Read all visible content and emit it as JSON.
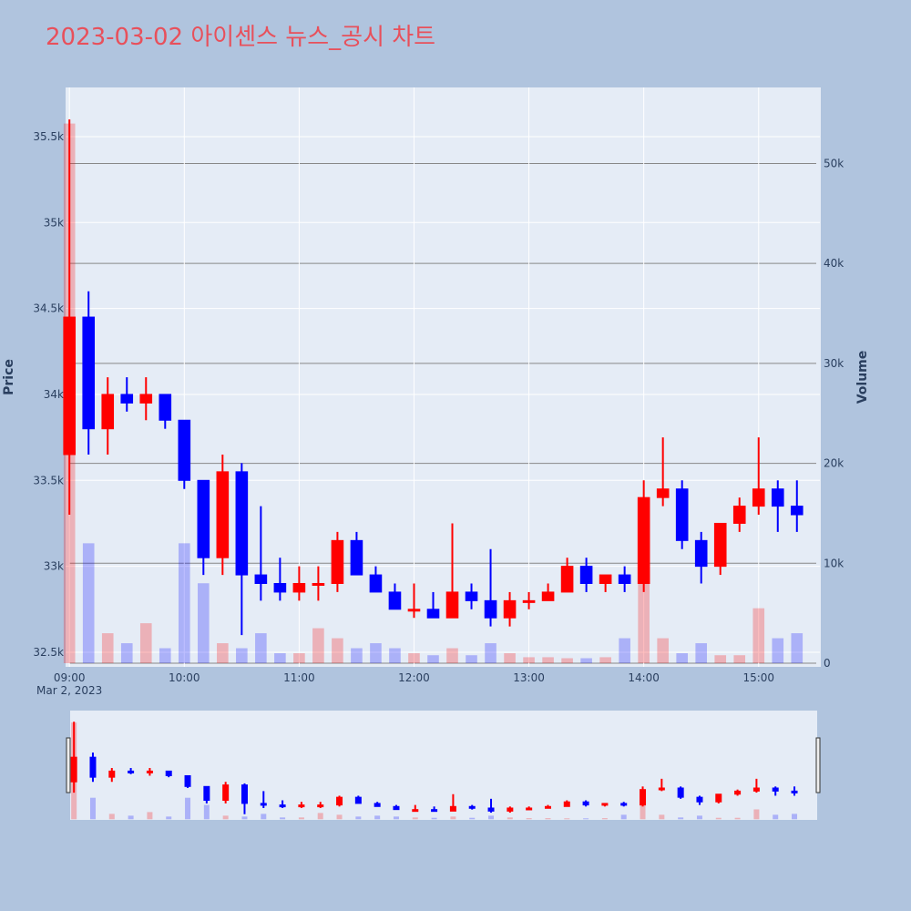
{
  "chart_data": {
    "type": "candlestick",
    "title": "2023-03-02 아이센스 뉴스_공시 차트",
    "x_date_label": "Mar 2, 2023",
    "ylabel": "Price",
    "y2label": "Volume",
    "x": [
      "09:00",
      "09:10",
      "09:20",
      "09:30",
      "09:40",
      "09:50",
      "10:00",
      "10:10",
      "10:20",
      "10:30",
      "10:40",
      "10:50",
      "11:00",
      "11:10",
      "11:20",
      "11:30",
      "11:40",
      "11:50",
      "12:00",
      "12:10",
      "12:20",
      "12:30",
      "12:40",
      "12:50",
      "13:00",
      "13:10",
      "13:20",
      "13:30",
      "13:40",
      "13:50",
      "14:00",
      "14:10",
      "14:20",
      "14:30",
      "14:40",
      "14:50",
      "15:00",
      "15:10",
      "15:20"
    ],
    "open": [
      33650,
      34450,
      33800,
      34000,
      33950,
      34000,
      33850,
      33500,
      33050,
      33550,
      32950,
      32900,
      32850,
      32900,
      32900,
      33150,
      32950,
      32850,
      32750,
      32750,
      32700,
      32850,
      32800,
      32700,
      32800,
      32800,
      32850,
      33000,
      32900,
      32950,
      32900,
      33400,
      33450,
      33150,
      33000,
      33250,
      33350,
      33450,
      33350
    ],
    "high": [
      35600,
      34600,
      34100,
      34100,
      34100,
      34000,
      33850,
      33500,
      33650,
      33600,
      33350,
      33050,
      33000,
      33000,
      33200,
      33200,
      33000,
      32900,
      32900,
      32850,
      33250,
      32900,
      33100,
      32850,
      32850,
      32900,
      33050,
      33050,
      32950,
      33000,
      33500,
      33750,
      33500,
      33200,
      33250,
      33400,
      33750,
      33500,
      33500
    ],
    "low": [
      33300,
      33650,
      33650,
      33900,
      33850,
      33800,
      33450,
      32950,
      32950,
      32600,
      32800,
      32800,
      32800,
      32800,
      32850,
      32950,
      32850,
      32750,
      32700,
      32700,
      32700,
      32750,
      32650,
      32650,
      32750,
      32800,
      32850,
      32850,
      32850,
      32850,
      32850,
      33350,
      33100,
      32900,
      32950,
      33200,
      33300,
      33200,
      33200
    ],
    "close": [
      34450,
      33800,
      34000,
      33950,
      34000,
      33850,
      33500,
      33050,
      33550,
      32950,
      32900,
      32850,
      32900,
      32900,
      33150,
      32950,
      32850,
      32750,
      32750,
      32700,
      32850,
      32800,
      32700,
      32800,
      32800,
      32850,
      33000,
      32900,
      32950,
      32900,
      33400,
      33450,
      33150,
      33000,
      33250,
      33350,
      33450,
      33350,
      33300
    ],
    "volume": [
      54000,
      12000,
      3000,
      2000,
      4000,
      1500,
      12000,
      8000,
      2000,
      1500,
      3000,
      1000,
      1000,
      3500,
      2500,
      1500,
      2000,
      1500,
      1000,
      800,
      1500,
      800,
      2000,
      1000,
      600,
      600,
      500,
      500,
      600,
      2500,
      9000,
      2500,
      1000,
      2000,
      800,
      800,
      5500,
      2500,
      3000
    ],
    "increasing_color": "#ff0000",
    "decreasing_color": "#0000ff",
    "xlim": [
      "08:58",
      "15:32"
    ],
    "xticks": [
      "09:00",
      "10:00",
      "11:00",
      "12:00",
      "13:00",
      "14:00",
      "15:00"
    ],
    "ylim": [
      32415,
      35786
    ],
    "yticks": [
      {
        "value": 32500,
        "label": "32.5k"
      },
      {
        "value": 33000,
        "label": "33k"
      },
      {
        "value": 33500,
        "label": "33.5k"
      },
      {
        "value": 34000,
        "label": "34k"
      },
      {
        "value": 34500,
        "label": "34.5k"
      },
      {
        "value": 35000,
        "label": "35k"
      },
      {
        "value": 35500,
        "label": "35.5k"
      }
    ],
    "y2lim": [
      -365,
      57610
    ],
    "y2ticks": [
      0,
      {
        "value": 10000,
        "label": "10k"
      },
      {
        "value": 20000,
        "label": "20k"
      },
      {
        "value": 30000,
        "label": "30k"
      },
      {
        "value": 40000,
        "label": "40k"
      },
      {
        "value": 50000,
        "label": "50k"
      }
    ],
    "rangeslider": true
  }
}
